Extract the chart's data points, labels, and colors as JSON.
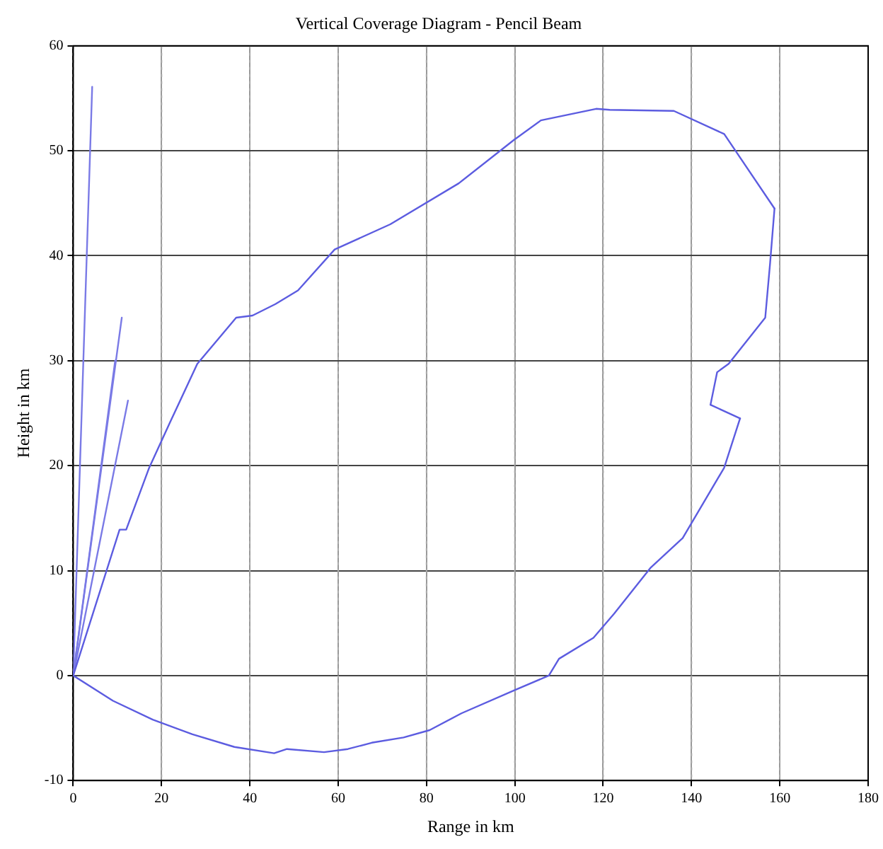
{
  "chart_data": {
    "type": "line",
    "title": "Vertical Coverage Diagram - Pencil Beam",
    "xlabel": "Range in km",
    "ylabel": "Height in km",
    "xlim": [
      0,
      180
    ],
    "ylim": [
      -10,
      60
    ],
    "xticks": [
      0,
      20,
      40,
      60,
      80,
      100,
      120,
      140,
      160,
      180
    ],
    "yticks": [
      -10,
      0,
      10,
      20,
      30,
      40,
      50,
      60
    ],
    "grid": true,
    "legend": false,
    "marker": "none",
    "line_style": "solid",
    "series": [
      {
        "color": "#5c5ce0",
        "x": [
          0,
          9,
          18,
          27,
          36.5,
          45.5,
          48.4,
          56.8,
          62.2,
          67.6,
          74.8,
          80.7,
          87.9,
          99.9,
          107.7,
          110,
          117.8,
          122.5,
          130.8,
          138,
          147.4,
          151
        ],
        "values": [
          0,
          -2.4,
          -4.2,
          -5.6,
          -6.8,
          -7.4,
          -7,
          -7.3,
          -7,
          -6.4,
          -5.9,
          -5.2,
          -3.6,
          -1.4,
          0,
          1.6,
          3.6,
          5.9,
          10.3,
          13.1,
          19.8,
          24.5
        ]
      },
      {
        "color": "#5c5ce0",
        "x": [
          144.3,
          151
        ],
        "values": [
          25.8,
          24.5
        ]
      },
      {
        "color": "#5c5ce0",
        "x": [
          144.3,
          145.8,
          148.4,
          156.7,
          157.8,
          158.8
        ],
        "values": [
          25.8,
          28.9,
          29.7,
          34.1,
          39.3,
          44.5
        ]
      },
      {
        "color": "#5c5ce0",
        "x": [
          0,
          10.5,
          12,
          17.2,
          21.9,
          28.1,
          33.3,
          36.9,
          40.6,
          45.8,
          50.9,
          59.2,
          71.8,
          87.3,
          99.7,
          105.9,
          118.4,
          121.5,
          136,
          147.4,
          158.8
        ],
        "values": [
          0,
          13.9,
          13.9,
          19.8,
          24.1,
          29.7,
          32.3,
          34.1,
          34.3,
          35.4,
          36.7,
          40.6,
          43,
          46.9,
          51,
          52.9,
          54,
          53.9,
          53.8,
          51.6,
          44.5
        ]
      },
      {
        "color": "#7a7ae6",
        "x": [
          0,
          4.3
        ],
        "values": [
          0,
          56.1
        ]
      },
      {
        "color": "#7a7ae6",
        "x": [
          0,
          11
        ],
        "values": [
          0,
          34.1
        ]
      },
      {
        "color": "#7a7ae6",
        "x": [
          0,
          9.5
        ],
        "values": [
          0,
          30
        ]
      },
      {
        "color": "#7a7ae6",
        "x": [
          0,
          12.4
        ],
        "values": [
          0,
          26.2
        ]
      }
    ]
  }
}
